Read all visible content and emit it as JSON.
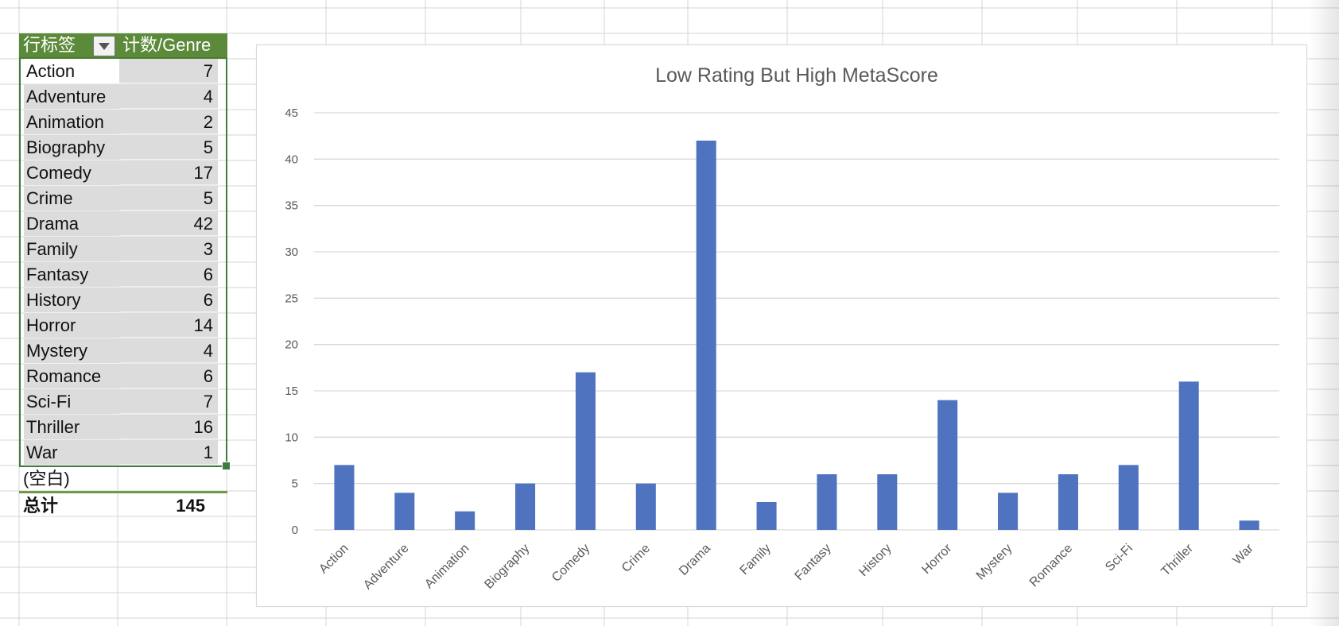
{
  "pivot": {
    "header_label": "行标签",
    "header_value": "计数/Genre",
    "rows": [
      {
        "label": "Action",
        "value": "7"
      },
      {
        "label": "Adventure",
        "value": "4"
      },
      {
        "label": "Animation",
        "value": "2"
      },
      {
        "label": "Biography",
        "value": "5"
      },
      {
        "label": "Comedy",
        "value": "17"
      },
      {
        "label": "Crime",
        "value": "5"
      },
      {
        "label": "Drama",
        "value": "42"
      },
      {
        "label": "Family",
        "value": "3"
      },
      {
        "label": "Fantasy",
        "value": "6"
      },
      {
        "label": "History",
        "value": "6"
      },
      {
        "label": "Horror",
        "value": "14"
      },
      {
        "label": "Mystery",
        "value": "4"
      },
      {
        "label": "Romance",
        "value": "6"
      },
      {
        "label": "Sci-Fi",
        "value": "7"
      },
      {
        "label": "Thriller",
        "value": "16"
      },
      {
        "label": "War",
        "value": "1"
      }
    ],
    "blank_label": "(空白)",
    "total_label": "总计",
    "total_value": "145"
  },
  "colors": {
    "header_bg": "#5b8a3a",
    "bar": "#4f73bf",
    "gridline": "#d9d9d9",
    "sheet_grid": "#d6d6d6"
  },
  "chart_data": {
    "type": "bar",
    "title": "Low Rating But High MetaScore",
    "categories": [
      "Action",
      "Adventure",
      "Animation",
      "Biography",
      "Comedy",
      "Crime",
      "Drama",
      "Family",
      "Fantasy",
      "History",
      "Horror",
      "Mystery",
      "Romance",
      "Sci-Fi",
      "Thriller",
      "War"
    ],
    "values": [
      7,
      4,
      2,
      5,
      17,
      5,
      42,
      3,
      6,
      6,
      14,
      4,
      6,
      7,
      16,
      1
    ],
    "ylim": [
      0,
      45
    ],
    "yticks": [
      0,
      5,
      10,
      15,
      20,
      25,
      30,
      35,
      40,
      45
    ],
    "grid": true,
    "legend": "none"
  }
}
